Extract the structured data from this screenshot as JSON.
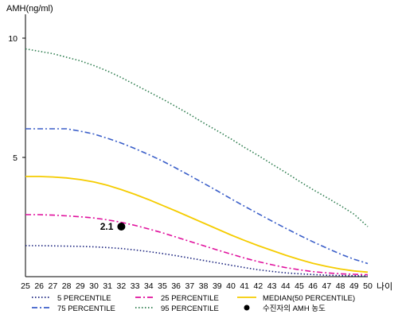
{
  "chart_data": {
    "type": "line",
    "ylabel": "AMH(ng/ml)",
    "xlabel": "나이",
    "x": [
      25,
      26,
      27,
      28,
      29,
      30,
      31,
      32,
      33,
      34,
      35,
      36,
      37,
      38,
      39,
      40,
      41,
      42,
      43,
      44,
      45,
      46,
      47,
      48,
      49,
      50
    ],
    "xlim": [
      25,
      50
    ],
    "ylim": [
      0,
      11
    ],
    "yticks": [
      5,
      10
    ],
    "grid": false,
    "legend_position": "bottom",
    "series": [
      {
        "name": "5 PERCENTILE",
        "color": "#1a237e",
        "style": "dotted",
        "values": [
          1.3,
          1.3,
          1.29,
          1.28,
          1.27,
          1.25,
          1.22,
          1.18,
          1.12,
          1.05,
          0.97,
          0.88,
          0.78,
          0.68,
          0.58,
          0.48,
          0.38,
          0.29,
          0.22,
          0.16,
          0.12,
          0.09,
          0.06,
          0.05,
          0.04,
          0.03
        ]
      },
      {
        "name": "25 PERCENTILE",
        "color": "#e0119d",
        "style": "dashdot",
        "values": [
          2.6,
          2.6,
          2.58,
          2.55,
          2.51,
          2.46,
          2.38,
          2.28,
          2.15,
          2.0,
          1.84,
          1.66,
          1.48,
          1.3,
          1.12,
          0.95,
          0.78,
          0.63,
          0.5,
          0.38,
          0.29,
          0.21,
          0.16,
          0.12,
          0.1,
          0.08
        ]
      },
      {
        "name": "MEDIAN(50 PERCENTILE)",
        "color": "#f5cc00",
        "style": "solid",
        "values": [
          4.2,
          4.2,
          4.18,
          4.14,
          4.07,
          3.97,
          3.83,
          3.65,
          3.45,
          3.23,
          2.99,
          2.75,
          2.5,
          2.25,
          2.0,
          1.75,
          1.52,
          1.3,
          1.1,
          0.9,
          0.72,
          0.56,
          0.43,
          0.32,
          0.24,
          0.19
        ]
      },
      {
        "name": "75 PERCENTILE",
        "color": "#3b5fc9",
        "style": "dashdot",
        "values": [
          6.2,
          6.2,
          6.2,
          6.2,
          6.1,
          5.98,
          5.8,
          5.6,
          5.37,
          5.12,
          4.85,
          4.55,
          4.24,
          3.92,
          3.6,
          3.27,
          2.95,
          2.64,
          2.33,
          2.03,
          1.74,
          1.46,
          1.2,
          0.95,
          0.73,
          0.55
        ]
      },
      {
        "name": "95 PERCENTILE",
        "color": "#2e7d4f",
        "style": "dotted",
        "values": [
          9.55,
          9.45,
          9.35,
          9.2,
          9.05,
          8.85,
          8.62,
          8.35,
          8.05,
          7.75,
          7.45,
          7.13,
          6.8,
          6.45,
          6.12,
          5.78,
          5.42,
          5.08,
          4.72,
          4.37,
          4.0,
          3.65,
          3.32,
          2.98,
          2.62,
          2.1
        ]
      }
    ],
    "point": {
      "name": "수진자의 AMH 농도",
      "x": 32,
      "y": 2.1,
      "label": "2.1",
      "color": "#000000"
    },
    "legend_order": [
      "5 PERCENTILE",
      "25 PERCENTILE",
      "MEDIAN(50 PERCENTILE)",
      "75 PERCENTILE",
      "95 PERCENTILE",
      "수진자의 AMH 농도"
    ]
  }
}
